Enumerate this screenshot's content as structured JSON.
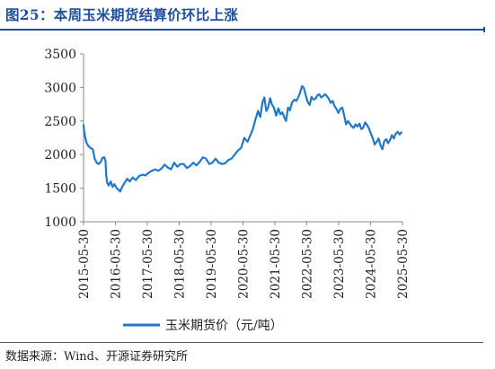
{
  "figure": {
    "title": "图25：本周玉米期货结算价环比上涨",
    "source": "数据来源：Wind、开源证券研究所"
  },
  "colors": {
    "title": "#1f4e9c",
    "line": "#1f78c8",
    "axis": "#888888"
  },
  "chart_data": {
    "type": "line",
    "title": "",
    "xlabel": "",
    "ylabel": "",
    "ylim": [
      1000,
      3500
    ],
    "yticks": [
      1000,
      1500,
      2000,
      2500,
      3000,
      3500
    ],
    "yticks_labels": [
      "1000",
      "1500",
      "2000",
      "2500",
      "3000",
      "3500"
    ],
    "xlim": [
      2015.41,
      2025.41
    ],
    "xticks": [
      2015.41,
      2016.41,
      2017.41,
      2018.41,
      2019.41,
      2020.41,
      2021.41,
      2022.41,
      2023.41,
      2024.41,
      2025.41
    ],
    "xticks_labels": [
      "2015-05-30",
      "2016-05-30",
      "2017-05-30",
      "2018-05-30",
      "2019-05-30",
      "2020-05-30",
      "2021-05-30",
      "2022-05-30",
      "2023-05-30",
      "2024-05-30",
      "2025-05-30"
    ],
    "grid": false,
    "legend_position": "bottom-center",
    "series": [
      {
        "name": "玉米期货价（元/吨）",
        "x": [
          2015.41,
          2015.43,
          2015.46,
          2015.5,
          2015.56,
          2015.62,
          2015.7,
          2015.76,
          2015.82,
          2015.88,
          2015.95,
          2016.0,
          2016.06,
          2016.1,
          2016.12,
          2016.15,
          2016.2,
          2016.26,
          2016.32,
          2016.38,
          2016.45,
          2016.5,
          2016.56,
          2016.62,
          2016.7,
          2016.78,
          2016.86,
          2016.95,
          2017.05,
          2017.15,
          2017.25,
          2017.35,
          2017.45,
          2017.55,
          2017.65,
          2017.75,
          2017.85,
          2017.95,
          2018.05,
          2018.15,
          2018.25,
          2018.35,
          2018.45,
          2018.55,
          2018.65,
          2018.75,
          2018.85,
          2018.95,
          2019.05,
          2019.15,
          2019.25,
          2019.35,
          2019.45,
          2019.55,
          2019.65,
          2019.75,
          2019.85,
          2019.95,
          2020.05,
          2020.15,
          2020.25,
          2020.35,
          2020.45,
          2020.55,
          2020.65,
          2020.72,
          2020.8,
          2020.88,
          2020.95,
          2021.02,
          2021.08,
          2021.14,
          2021.2,
          2021.26,
          2021.32,
          2021.38,
          2021.45,
          2021.52,
          2021.58,
          2021.64,
          2021.7,
          2021.76,
          2021.82,
          2021.88,
          2021.95,
          2022.02,
          2022.08,
          2022.14,
          2022.2,
          2022.26,
          2022.32,
          2022.38,
          2022.44,
          2022.5,
          2022.56,
          2022.62,
          2022.68,
          2022.74,
          2022.8,
          2022.86,
          2022.92,
          2022.98,
          2023.04,
          2023.1,
          2023.16,
          2023.22,
          2023.28,
          2023.34,
          2023.4,
          2023.46,
          2023.52,
          2023.58,
          2023.64,
          2023.7,
          2023.76,
          2023.82,
          2023.88,
          2023.94,
          2024.0,
          2024.06,
          2024.12,
          2024.18,
          2024.24,
          2024.3,
          2024.36,
          2024.42,
          2024.48,
          2024.54,
          2024.6,
          2024.66,
          2024.72,
          2024.78,
          2024.84,
          2024.9,
          2024.96,
          2025.02,
          2025.08,
          2025.14,
          2025.2,
          2025.26,
          2025.32,
          2025.38
        ],
        "y": [
          2440,
          2350,
          2260,
          2180,
          2130,
          2100,
          2080,
          1940,
          1880,
          1860,
          1890,
          1950,
          1960,
          1900,
          1700,
          1580,
          1540,
          1600,
          1520,
          1560,
          1500,
          1480,
          1450,
          1520,
          1580,
          1640,
          1600,
          1660,
          1620,
          1680,
          1700,
          1690,
          1730,
          1760,
          1780,
          1760,
          1790,
          1850,
          1810,
          1780,
          1880,
          1820,
          1860,
          1860,
          1800,
          1830,
          1880,
          1840,
          1890,
          1960,
          1940,
          1860,
          1880,
          1940,
          1880,
          1860,
          1870,
          1920,
          1940,
          2000,
          2060,
          2100,
          2250,
          2190,
          2300,
          2380,
          2520,
          2650,
          2560,
          2780,
          2850,
          2650,
          2700,
          2840,
          2740,
          2700,
          2580,
          2690,
          2600,
          2630,
          2560,
          2500,
          2700,
          2660,
          2780,
          2820,
          2800,
          2850,
          2920,
          3020,
          2990,
          2880,
          2780,
          2740,
          2860,
          2820,
          2830,
          2880,
          2900,
          2850,
          2870,
          2900,
          2870,
          2830,
          2770,
          2800,
          2720,
          2680,
          2620,
          2680,
          2700,
          2590,
          2450,
          2500,
          2460,
          2420,
          2400,
          2450,
          2420,
          2460,
          2380,
          2400,
          2480,
          2440,
          2390,
          2310,
          2240,
          2150,
          2190,
          2240,
          2140,
          2080,
          2200,
          2230,
          2170,
          2220,
          2290,
          2240,
          2310,
          2340,
          2300,
          2330
        ]
      }
    ]
  }
}
